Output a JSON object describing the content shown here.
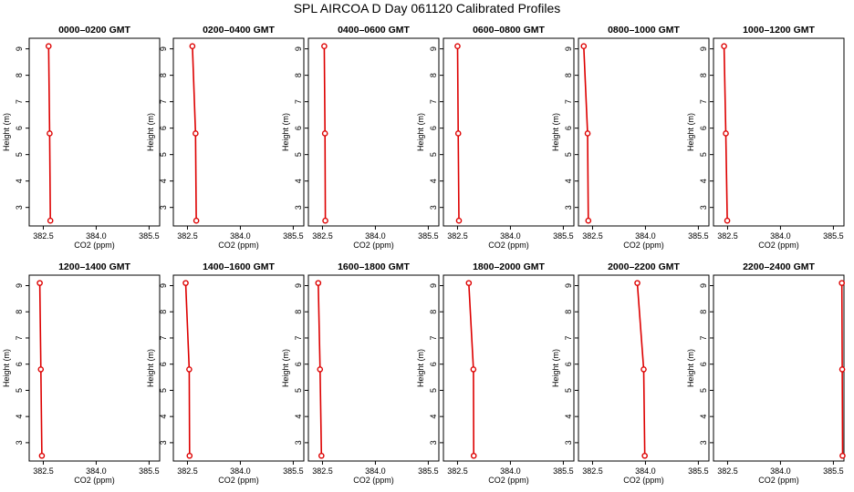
{
  "title": "SPL AIRCOA D  Day 061120  Calibrated Profiles",
  "colors": {
    "series": "#dd0000",
    "axis": "#000000"
  },
  "chart_data": {
    "type": "line",
    "xlabel": "CO2 (ppm)",
    "ylabel": "Height (m)",
    "xlim": [
      382.1,
      385.8
    ],
    "ylim": [
      2.3,
      9.4
    ],
    "xticks": [
      "382.5",
      "384.0",
      "385.5"
    ],
    "xtick_values": [
      382.5,
      384.0,
      385.5
    ],
    "yticks": [
      "3",
      "4",
      "5",
      "6",
      "7",
      "8",
      "9"
    ],
    "ytick_values": [
      3,
      4,
      5,
      6,
      7,
      8,
      9
    ],
    "heights": [
      9.1,
      5.8,
      2.5
    ],
    "panels": [
      {
        "title": "0000–0200 GMT",
        "x": [
          382.65,
          382.68,
          382.7
        ]
      },
      {
        "title": "0200–0400 GMT",
        "x": [
          382.64,
          382.73,
          382.75
        ]
      },
      {
        "title": "0400–0600 GMT",
        "x": [
          382.55,
          382.57,
          382.58
        ]
      },
      {
        "title": "0600–0800 GMT",
        "x": [
          382.5,
          382.52,
          382.54
        ]
      },
      {
        "title": "0800–1000 GMT",
        "x": [
          382.25,
          382.36,
          382.38
        ]
      },
      {
        "title": "1000–1200 GMT",
        "x": [
          382.4,
          382.45,
          382.49
        ]
      },
      {
        "title": "1200–1400 GMT",
        "x": [
          382.4,
          382.43,
          382.46
        ]
      },
      {
        "title": "1400–1600 GMT",
        "x": [
          382.45,
          382.55,
          382.56
        ]
      },
      {
        "title": "1600–1800 GMT",
        "x": [
          382.38,
          382.43,
          382.47
        ]
      },
      {
        "title": "1800–2000 GMT",
        "x": [
          382.82,
          382.95,
          382.96
        ]
      },
      {
        "title": "2000–2200 GMT",
        "x": [
          383.77,
          383.95,
          383.98
        ]
      },
      {
        "title": "2200–2400 GMT",
        "x": [
          385.74,
          385.75,
          385.76
        ]
      }
    ]
  }
}
